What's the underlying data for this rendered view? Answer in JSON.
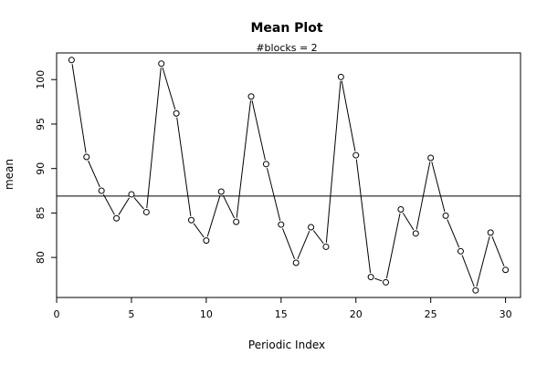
{
  "chart_data": {
    "type": "line",
    "title": "Mean Plot",
    "subtitle": "#blocks =  2",
    "xlabel": "Periodic Index",
    "ylabel": "mean",
    "xlim": [
      0,
      31
    ],
    "ylim": [
      75.5,
      103
    ],
    "xticks": [
      0,
      5,
      10,
      15,
      20,
      25,
      30
    ],
    "yticks": [
      80,
      85,
      90,
      95,
      100
    ],
    "reference_line": 86.9,
    "grid": false,
    "legend": "none",
    "series": [
      {
        "x": [
          1,
          2,
          3,
          4,
          5,
          6,
          7,
          8,
          9,
          10,
          11,
          12,
          13,
          14,
          15,
          16,
          17,
          18,
          19,
          20,
          21,
          22,
          23,
          24,
          25,
          26,
          27,
          28,
          29,
          30
        ],
        "y": [
          102.2,
          91.3,
          87.5,
          84.4,
          87.1,
          85.1,
          101.8,
          96.2,
          84.2,
          81.9,
          87.4,
          84.0,
          98.1,
          90.5,
          83.7,
          79.4,
          83.4,
          81.2,
          100.3,
          91.5,
          77.8,
          77.2,
          85.4,
          82.7,
          91.2,
          84.7,
          80.7,
          76.3,
          82.8,
          78.6
        ]
      }
    ]
  }
}
